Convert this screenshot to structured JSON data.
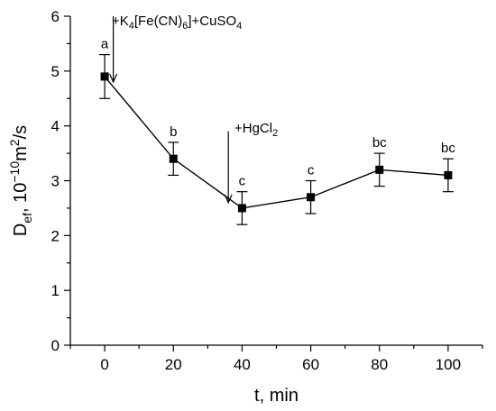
{
  "chart_data": {
    "type": "line",
    "xlabel": "t, min",
    "ylabel_parts": {
      "base": "D",
      "base_sub": "ef",
      "sep": ", 10",
      "exp": "−10",
      "unit": "m",
      "unit_exp": "2",
      "tail": "/s"
    },
    "xlim": [
      -10,
      110
    ],
    "ylim": [
      0,
      6
    ],
    "xticks": [
      0,
      20,
      40,
      60,
      80,
      100
    ],
    "yticks": [
      0,
      1,
      2,
      3,
      4,
      5,
      6
    ],
    "grid": false,
    "series": [
      {
        "marker": "square",
        "color": "#000000",
        "points": [
          {
            "x": 0,
            "y": 4.9,
            "err": 0.4,
            "label": "a"
          },
          {
            "x": 20,
            "y": 3.4,
            "err": 0.3,
            "label": "b"
          },
          {
            "x": 40,
            "y": 2.5,
            "err": 0.3,
            "label": "c"
          },
          {
            "x": 60,
            "y": 2.7,
            "err": 0.3,
            "label": "c"
          },
          {
            "x": 80,
            "y": 3.2,
            "err": 0.3,
            "label": "bc"
          },
          {
            "x": 100,
            "y": 3.1,
            "err": 0.3,
            "label": "bc"
          }
        ]
      }
    ],
    "annotations": [
      {
        "kind": "arrow",
        "x": 2.5,
        "y_from": 6.0,
        "y_to": 4.8,
        "text_parts": [
          {
            "t": "+K",
            "sub": false
          },
          {
            "t": "4",
            "sub": true
          },
          {
            "t": "[Fe(CN)",
            "sub": false
          },
          {
            "t": "6",
            "sub": true
          },
          {
            "t": "]+CuSO",
            "sub": false
          },
          {
            "t": "4",
            "sub": true
          }
        ]
      },
      {
        "kind": "arrow",
        "x": 36,
        "y_from": 3.9,
        "y_to": 2.6,
        "text_parts": [
          {
            "t": "+HgCl",
            "sub": false
          },
          {
            "t": "2",
            "sub": true
          }
        ]
      }
    ]
  }
}
